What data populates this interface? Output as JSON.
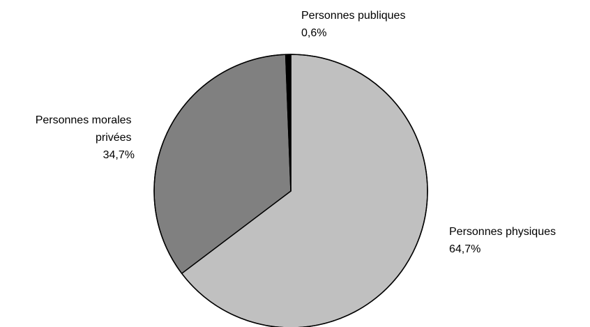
{
  "chart_data": {
    "type": "pie",
    "title": "",
    "start": "top",
    "direction": "clockwise",
    "slices": [
      {
        "name": "Personnes physiques",
        "value": 64.7,
        "value_label": "64,7%",
        "label_lines": [
          "Personnes physiques"
        ],
        "label_position": "bottom-right",
        "color": "#c0c0c0"
      },
      {
        "name": "Personnes morales privées",
        "value": 34.7,
        "value_label": "34,7%",
        "label_lines": [
          "Personnes morales",
          "privées"
        ],
        "label_position": "left",
        "color": "#808080"
      },
      {
        "name": "Personnes publiques",
        "value": 0.6,
        "value_label": "0,6%",
        "label_lines": [
          "Personnes publiques"
        ],
        "label_position": "top-right",
        "color": "#000000"
      }
    ],
    "border_color": "#000000",
    "legend": "none"
  }
}
